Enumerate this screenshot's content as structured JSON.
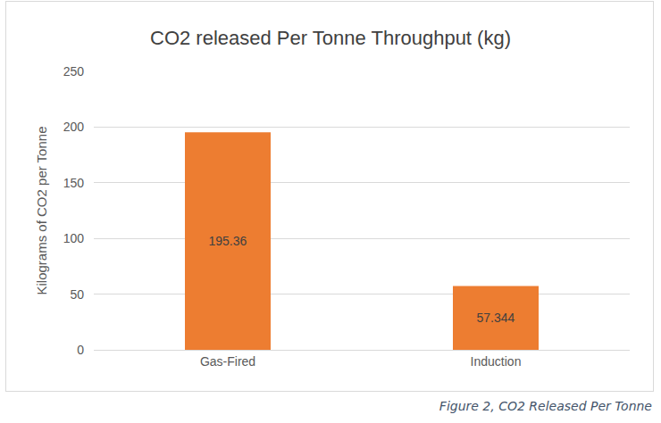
{
  "chart_data": {
    "type": "bar",
    "title": "CO2 released Per Tonne Throughput (kg)",
    "y_label": "Kilograms of CO2 per Tonne",
    "categories": [
      "Gas-Fired",
      "Induction"
    ],
    "values": [
      195.36,
      57.344
    ],
    "color": "#ed7d31",
    "ylim": [
      0,
      250
    ],
    "yticks": [
      0,
      50,
      100,
      150,
      200,
      250
    ],
    "grid": true,
    "data_labels": true,
    "caption": "Figure 2, CO2 Released Per Tonne"
  }
}
